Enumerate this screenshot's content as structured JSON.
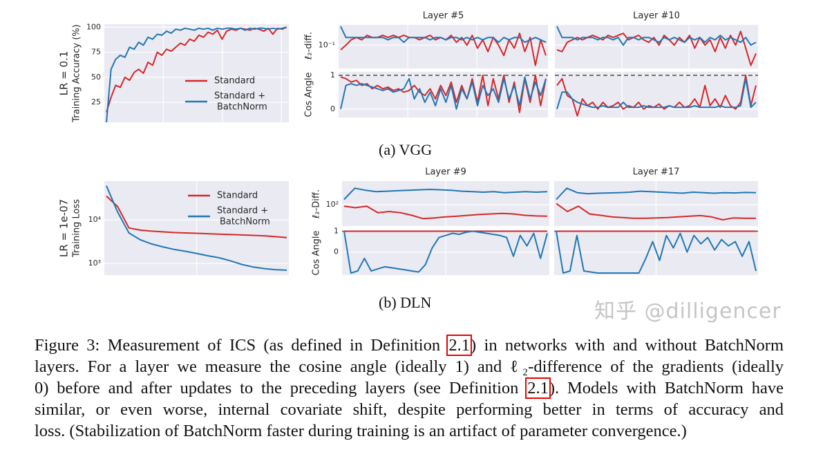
{
  "colors": {
    "standard": "#d62728",
    "batchnorm": "#1f77b4",
    "panel_bg": "#eaeaf2",
    "grid": "#ffffff",
    "dashed_ref": "#555555"
  },
  "legend": {
    "standard": "Standard",
    "batchnorm_line1": "Standard +",
    "batchnorm_line2": "BatchNorm"
  },
  "subfigures": {
    "a": "(a) VGG",
    "b": "(b) DLN"
  },
  "chart_data": [
    {
      "id": "vgg-accuracy",
      "type": "line",
      "row_label": "LR = 0.1",
      "ylabel": "Training Accuracy (%)",
      "ylim": [
        5,
        103
      ],
      "log": false,
      "yticks": [
        25,
        50,
        75,
        100
      ],
      "ytick_labels": [
        "25",
        "50",
        "75",
        "100"
      ],
      "grid": true,
      "legend": "center-right",
      "series": [
        {
          "name": "Standard",
          "values": [
            15,
            30,
            42,
            40,
            50,
            47,
            55,
            58,
            54,
            65,
            62,
            75,
            72,
            78,
            76,
            80,
            84,
            82,
            88,
            86,
            92,
            90,
            95,
            93,
            97,
            88,
            96,
            98,
            97,
            99,
            98,
            97,
            99,
            98,
            96,
            99,
            93,
            99,
            98,
            100
          ]
        },
        {
          "name": "Standard + BatchNorm",
          "values": [
            5,
            58,
            68,
            72,
            70,
            80,
            78,
            85,
            82,
            90,
            88,
            93,
            92,
            96,
            94,
            98,
            97,
            99,
            98,
            97,
            99,
            98,
            99,
            97,
            99,
            98,
            99,
            99,
            98,
            99,
            97,
            99,
            98,
            99,
            99,
            98,
            99,
            98,
            99,
            100
          ]
        }
      ]
    },
    {
      "id": "vgg-l2-layer5",
      "type": "line",
      "title": "Layer #5",
      "ylabel": "ℓ₂-diff.",
      "ylim": [
        0.045,
        0.2
      ],
      "log": true,
      "yticks": [
        0.1
      ],
      "ytick_labels": [
        "10⁻¹"
      ],
      "grid": true,
      "series": [
        {
          "name": "Standard",
          "values": [
            0.085,
            0.1,
            0.12,
            0.13,
            0.12,
            0.14,
            0.13,
            0.13,
            0.14,
            0.13,
            0.14,
            0.13,
            0.14,
            0.13,
            0.13,
            0.12,
            0.13,
            0.14,
            0.12,
            0.13,
            0.12,
            0.14,
            0.11,
            0.13,
            0.1,
            0.14,
            0.09,
            0.12,
            0.08,
            0.13,
            0.1,
            0.07,
            0.12,
            0.09,
            0.15,
            0.08,
            0.13,
            0.05,
            0.12,
            0.07
          ]
        },
        {
          "name": "Standard + BatchNorm",
          "values": [
            0.19,
            0.13,
            0.13,
            0.13,
            0.13,
            0.13,
            0.13,
            0.13,
            0.13,
            0.12,
            0.13,
            0.13,
            0.11,
            0.13,
            0.13,
            0.13,
            0.13,
            0.12,
            0.13,
            0.13,
            0.12,
            0.13,
            0.13,
            0.12,
            0.13,
            0.12,
            0.13,
            0.12,
            0.13,
            0.13,
            0.11,
            0.13,
            0.12,
            0.13,
            0.13,
            0.11,
            0.12,
            0.13,
            0.12,
            0.11
          ]
        }
      ]
    },
    {
      "id": "vgg-l2-layer10",
      "type": "line",
      "title": "Layer #10",
      "ylim": [
        0.045,
        0.2
      ],
      "log": true,
      "yticks": [
        0.1
      ],
      "ytick_labels": [
        ""
      ],
      "grid": true,
      "series": [
        {
          "name": "Standard",
          "values": [
            0.085,
            0.08,
            0.11,
            0.12,
            0.13,
            0.12,
            0.13,
            0.14,
            0.13,
            0.12,
            0.14,
            0.13,
            0.14,
            0.15,
            0.12,
            0.13,
            0.14,
            0.12,
            0.11,
            0.13,
            0.1,
            0.14,
            0.12,
            0.1,
            0.13,
            0.11,
            0.14,
            0.09,
            0.13,
            0.1,
            0.12,
            0.08,
            0.13,
            0.09,
            0.14,
            0.1,
            0.16,
            0.09,
            0.05,
            0.075
          ]
        },
        {
          "name": "Standard + BatchNorm",
          "values": [
            0.19,
            0.13,
            0.13,
            0.13,
            0.12,
            0.13,
            0.13,
            0.13,
            0.12,
            0.13,
            0.13,
            0.12,
            0.13,
            0.1,
            0.13,
            0.13,
            0.12,
            0.13,
            0.13,
            0.12,
            0.11,
            0.13,
            0.12,
            0.13,
            0.12,
            0.11,
            0.13,
            0.12,
            0.13,
            0.11,
            0.13,
            0.12,
            0.14,
            0.12,
            0.13,
            0.12,
            0.11,
            0.13,
            0.1,
            0.11
          ]
        }
      ]
    },
    {
      "id": "vgg-cos-layer5",
      "type": "line",
      "ylabel": "Cos Angle",
      "ylim": [
        -0.25,
        1.1
      ],
      "log": false,
      "yticks": [
        0,
        1
      ],
      "ytick_labels": [
        "0",
        "1"
      ],
      "grid": true,
      "reference_line": 1,
      "series": [
        {
          "name": "Standard",
          "values": [
            0.95,
            0.9,
            0.8,
            0.85,
            0.7,
            0.75,
            0.6,
            0.7,
            0.6,
            0.65,
            0.55,
            0.6,
            0.5,
            0.55,
            0.7,
            0.5,
            0.4,
            0.6,
            0.3,
            0.7,
            0.4,
            0.8,
            0.2,
            0.7,
            0.3,
            0.9,
            0.2,
            1.0,
            0.1,
            0.9,
            0.3,
            1.0,
            0.2,
            0.8,
            -0.1,
            0.9,
            0.2,
            1.0,
            0.1,
            0.9
          ]
        },
        {
          "name": "Standard + BatchNorm",
          "values": [
            0.0,
            0.7,
            0.75,
            0.7,
            0.75,
            0.7,
            0.65,
            0.6,
            0.55,
            0.6,
            0.5,
            0.55,
            0.6,
            0.9,
            0.3,
            0.6,
            0.2,
            0.5,
            0.1,
            0.6,
            0.2,
            0.7,
            0.0,
            0.6,
            0.3,
            0.8,
            0.1,
            0.7,
            0.4,
            0.6,
            0.2,
            0.9,
            0.3,
            0.7,
            0.1,
            0.95,
            0.3,
            0.8,
            0.4,
            0.9
          ]
        }
      ]
    },
    {
      "id": "vgg-cos-layer10",
      "type": "line",
      "ylim": [
        -0.25,
        1.1
      ],
      "log": false,
      "yticks": [
        0,
        1
      ],
      "ytick_labels": [
        "",
        ""
      ],
      "grid": true,
      "reference_line": 1,
      "series": [
        {
          "name": "Standard",
          "values": [
            0.7,
            0.9,
            0.4,
            0.3,
            -0.2,
            0.3,
            0.1,
            0.2,
            0.0,
            0.2,
            0.05,
            0.1,
            0.2,
            0.0,
            0.1,
            0.05,
            0.2,
            0.0,
            0.1,
            0.05,
            0.15,
            0.0,
            0.1,
            0.05,
            0.2,
            0.05,
            0.1,
            0.3,
            0.05,
            0.7,
            0.1,
            0.3,
            0.05,
            0.4,
            0.1,
            0.0,
            0.2,
            1.0,
            0.1,
            0.7
          ]
        },
        {
          "name": "Standard + BatchNorm",
          "values": [
            0.0,
            0.5,
            0.5,
            0.3,
            0.2,
            0.15,
            0.1,
            0.05,
            0.05,
            0.1,
            0.05,
            0.05,
            0.05,
            0.2,
            0.05,
            0.05,
            0.05,
            0.1,
            0.05,
            0.05,
            0.05,
            0.05,
            0.1,
            0.05,
            0.05,
            0.05,
            0.05,
            0.1,
            0.05,
            0.05,
            0.05,
            0.05,
            0.1,
            0.05,
            0.05,
            0.05,
            0.1,
            0.9,
            0.05,
            0.2
          ]
        }
      ]
    },
    {
      "id": "dln-loss",
      "type": "line",
      "row_label": "LR = 1e-07",
      "ylabel": "Training Loss",
      "ylim": [
        540,
        77000
      ],
      "log": true,
      "yticks": [
        1000,
        10000
      ],
      "ytick_labels": [
        "10³",
        "10⁴"
      ],
      "grid": true,
      "legend": "upper-right",
      "series": [
        {
          "name": "Standard",
          "values": [
            35000,
            20000,
            6500,
            5800,
            5500,
            5300,
            5100,
            5000,
            4900,
            4800,
            4700,
            4600,
            4500,
            4400,
            4300,
            4100,
            3900
          ]
        },
        {
          "name": "Standard + BatchNorm",
          "values": [
            60000,
            15000,
            5000,
            3500,
            2800,
            2400,
            2100,
            1900,
            1700,
            1500,
            1350,
            1150,
            950,
            830,
            760,
            720,
            700
          ]
        }
      ]
    },
    {
      "id": "dln-l2-layer9",
      "type": "line",
      "title": "Layer #9",
      "ylabel": "ℓ₂-Diff.",
      "ylim": [
        20,
        600
      ],
      "log": true,
      "yticks": [
        100
      ],
      "ytick_labels": [
        "10²"
      ],
      "grid": true,
      "series": [
        {
          "name": "Standard",
          "values": [
            90,
            80,
            90,
            55,
            60,
            55,
            45,
            35,
            37,
            40,
            42,
            45,
            48,
            50,
            52,
            50,
            45,
            43,
            42
          ]
        },
        {
          "name": "Standard + BatchNorm",
          "values": [
            150,
            350,
            300,
            270,
            280,
            290,
            300,
            310,
            320,
            310,
            300,
            280,
            270,
            260,
            270,
            250,
            260,
            270,
            260,
            270
          ]
        }
      ]
    },
    {
      "id": "dln-l2-layer17",
      "type": "line",
      "title": "Layer #17",
      "ylim": [
        20,
        600
      ],
      "log": true,
      "yticks": [
        100
      ],
      "ytick_labels": [
        ""
      ],
      "grid": true,
      "series": [
        {
          "name": "Standard",
          "values": [
            110,
            60,
            90,
            50,
            45,
            40,
            38,
            36,
            36,
            37,
            38,
            40,
            42,
            44,
            40,
            32,
            37,
            36,
            36
          ]
        },
        {
          "name": "Standard + BatchNorm",
          "values": [
            150,
            350,
            250,
            230,
            240,
            245,
            250,
            260,
            280,
            270,
            260,
            250,
            240,
            260,
            250,
            240,
            250,
            245,
            255,
            250
          ]
        }
      ]
    },
    {
      "id": "dln-cos-layer9",
      "type": "line",
      "ylabel": "Cos Angle",
      "ylim": [
        -1.1,
        1.05
      ],
      "log": false,
      "yticks": [
        0,
        1
      ],
      "ytick_labels": [
        "0",
        "1"
      ],
      "grid": true,
      "reference_line": 1,
      "series": [
        {
          "name": "Standard",
          "values": [
            1,
            1,
            1,
            1,
            1,
            1,
            1,
            1,
            1,
            1
          ]
        },
        {
          "name": "Standard + BatchNorm",
          "values": [
            1,
            -1,
            -0.9,
            -0.3,
            -0.9,
            -0.8,
            -0.7,
            -0.75,
            -0.8,
            -0.85,
            -0.9,
            -0.95,
            -0.6,
            0.2,
            0.7,
            0.8,
            0.9,
            0.85,
            0.95,
            1,
            0.95,
            0.9,
            0.85,
            0.8,
            0.7,
            -0.2,
            0.8,
            0.3,
            0.9,
            -0.3,
            0.9
          ]
        }
      ]
    },
    {
      "id": "dln-cos-layer17",
      "type": "line",
      "ylim": [
        -1.1,
        1.05
      ],
      "log": false,
      "yticks": [
        0,
        1
      ],
      "ytick_labels": [
        "",
        ""
      ],
      "grid": true,
      "reference_line": 1,
      "series": [
        {
          "name": "Standard",
          "values": [
            1,
            1,
            1,
            1,
            1,
            1,
            1,
            1,
            1,
            1
          ]
        },
        {
          "name": "Standard + BatchNorm",
          "values": [
            1,
            -1,
            -0.9,
            0.8,
            -0.9,
            -0.95,
            -1,
            -1,
            -1,
            -1,
            -1,
            -1,
            -1,
            -0.3,
            0.5,
            -0.4,
            0.8,
            0.2,
            0.9,
            0.0,
            0.8,
            0.4,
            0.7,
            0.1,
            0.6,
            0.3,
            0.5,
            -0.2,
            0.5,
            -0.9
          ]
        }
      ]
    }
  ],
  "caption": {
    "lines": [
      {
        "before": "Figure 3: Measurement of ICS (as defined in Definition ",
        "ref": "2.1",
        "after": ") in networks with and without BatchNorm"
      },
      {
        "before": "layers. For a layer we measure the cosine angle (ideally 1) and ℓ₂-difference of the gradients (ideally",
        "ref": "",
        "after": ""
      },
      {
        "before": "0) before and after updates to the preceding layers (see Definition ",
        "ref": "2.1",
        "after": "). Models with BatchNorm have"
      },
      {
        "before": "similar, or even worse, internal covariate shift, despite performing better in terms of accuracy and",
        "ref": "",
        "after": ""
      },
      {
        "before": "loss. (Stabilization of BatchNorm faster during training is an artifact of parameter convergence.)",
        "ref": "",
        "after": ""
      }
    ]
  },
  "watermark": "知乎 @dilligencer"
}
